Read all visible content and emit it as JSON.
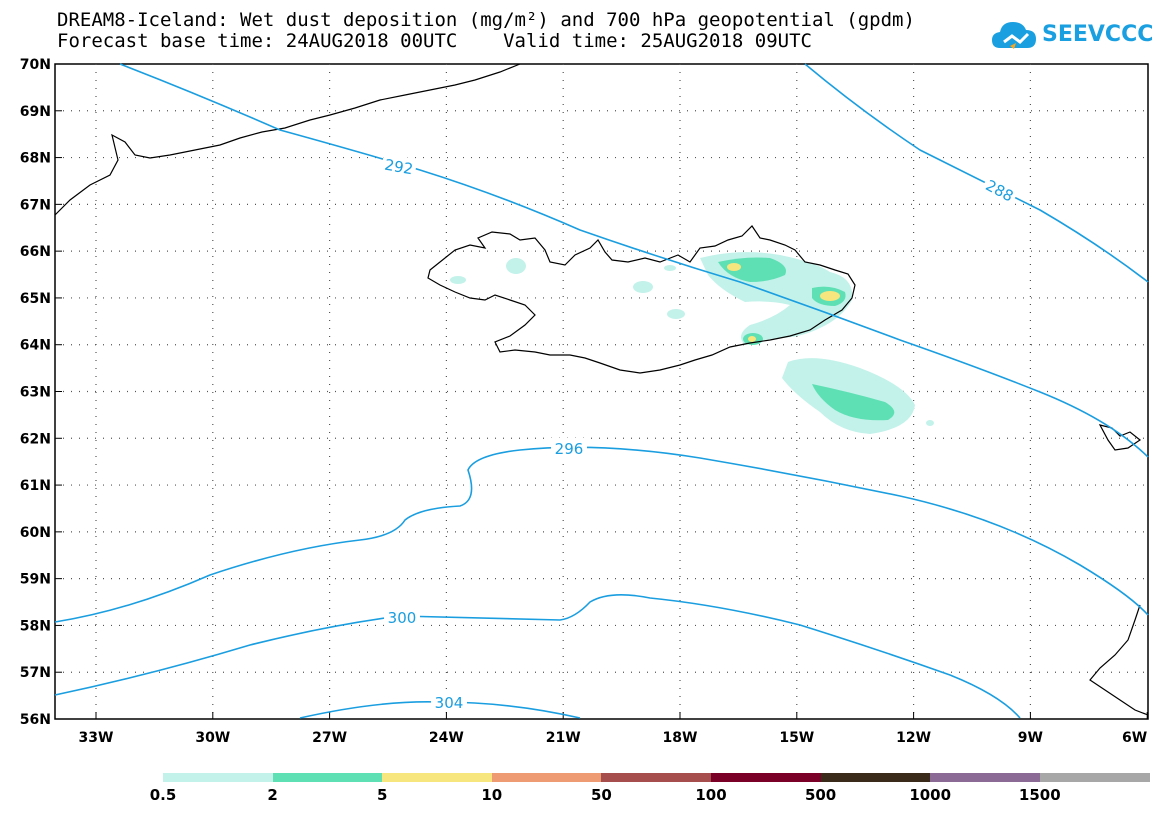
{
  "title_line1": "DREAM8-Iceland: Wet dust deposition (mg/m²) and 700 hPa geopotential (gpdm)",
  "title_line2": "Forecast base time: 24AUG2018 00UTC    Valid time: 25AUG2018 09UTC",
  "logo_text": "SEEVCCC",
  "logo_icon": "cloud-icon",
  "lat_labels": [
    "70N",
    "69N",
    "68N",
    "67N",
    "66N",
    "65N",
    "64N",
    "63N",
    "62N",
    "61N",
    "60N",
    "59N",
    "58N",
    "57N",
    "56N"
  ],
  "lon_labels": [
    "33W",
    "30W",
    "27W",
    "24W",
    "21W",
    "18W",
    "15W",
    "12W",
    "9W",
    "6W"
  ],
  "contours": [
    {
      "label": "288"
    },
    {
      "label": "292"
    },
    {
      "label": "296"
    },
    {
      "label": "300"
    },
    {
      "label": "304"
    }
  ],
  "legend": {
    "colors": [
      "#c3f2ea",
      "#5fe0b4",
      "#f7e67e",
      "#ee9a72",
      "#a64d4d",
      "#7a0028",
      "#3a2a1a",
      "#8c6a96",
      "#a7a7a7"
    ],
    "labels": [
      "0.5",
      "2",
      "5",
      "10",
      "50",
      "100",
      "500",
      "1000",
      "1500"
    ]
  },
  "colors": {
    "contour": "#1a9ee0",
    "coast": "#000000"
  }
}
